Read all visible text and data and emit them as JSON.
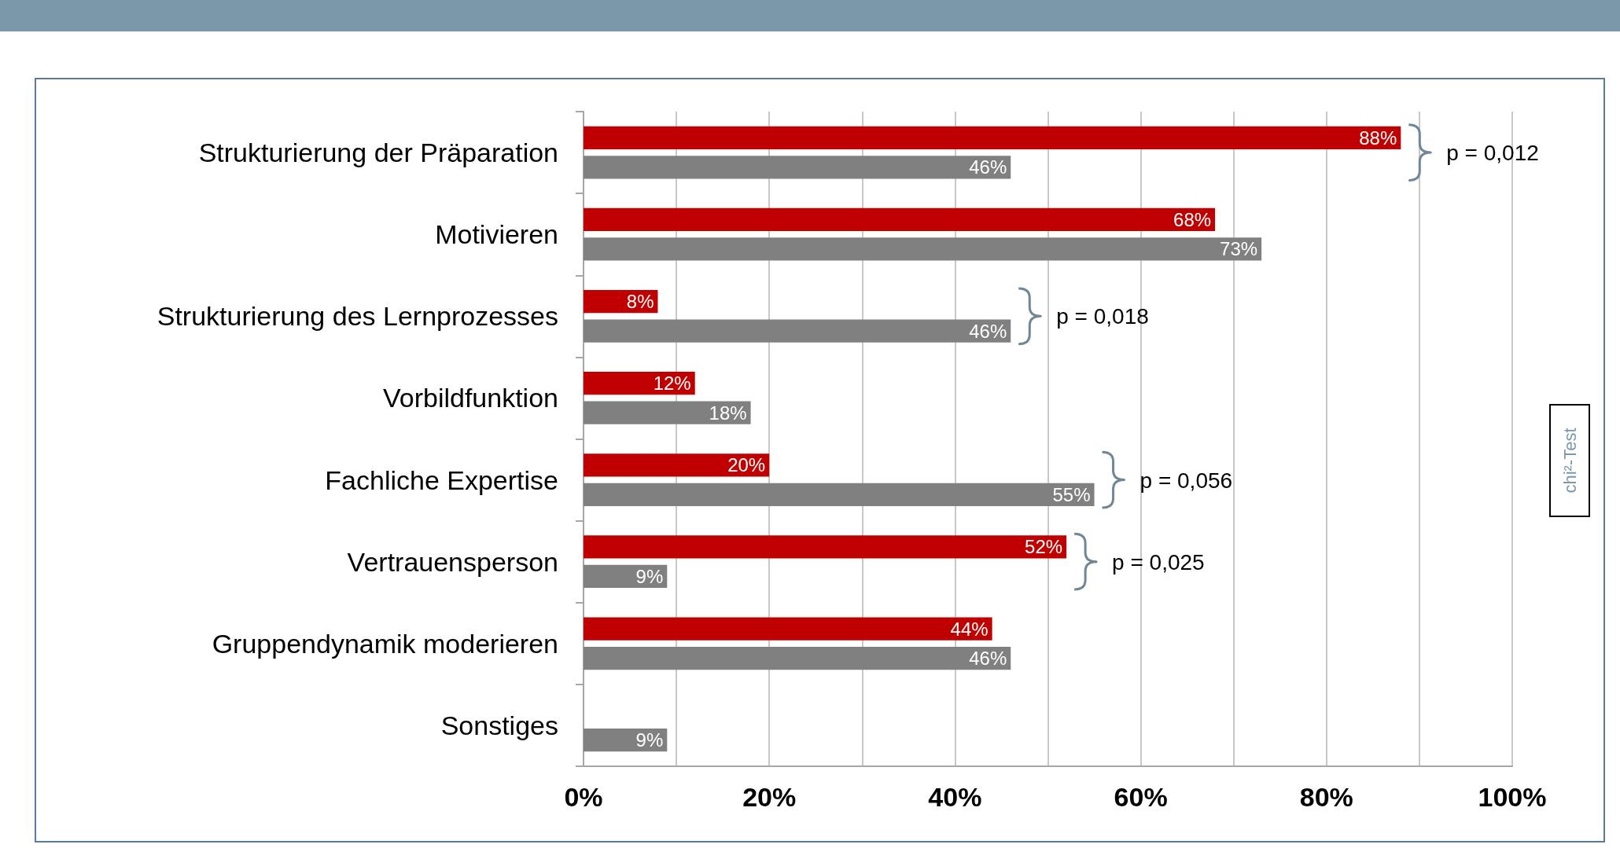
{
  "chart_data": {
    "type": "bar",
    "orientation": "horizontal",
    "categories": [
      "Strukturierung der Präparation",
      "Motivieren",
      "Strukturierung des Lernprozesses",
      "Vorbildfunktion",
      "Fachliche Expertise",
      "Vertrauensperson",
      "Gruppendynamik moderieren",
      "Sonstiges"
    ],
    "series": [
      {
        "color": "#c00000",
        "values": [
          88,
          68,
          8,
          12,
          20,
          52,
          44,
          null
        ],
        "value_labels": [
          "88%",
          "68%",
          "8%",
          "12%",
          "20%",
          "52%",
          "44%",
          null
        ]
      },
      {
        "color": "#808080",
        "values": [
          46,
          73,
          46,
          18,
          55,
          9,
          46,
          9
        ],
        "value_labels": [
          "46%",
          "73%",
          "46%",
          "18%",
          "55%",
          "9%",
          "46%",
          "9%"
        ]
      }
    ],
    "xlim": [
      0,
      100
    ],
    "xticks": [
      {
        "value": 0,
        "label": "0%"
      },
      {
        "value": 10,
        "label": null
      },
      {
        "value": 20,
        "label": "20%"
      },
      {
        "value": 30,
        "label": null
      },
      {
        "value": 40,
        "label": "40%"
      },
      {
        "value": 50,
        "label": null
      },
      {
        "value": 60,
        "label": "60%"
      },
      {
        "value": 70,
        "label": null
      },
      {
        "value": 80,
        "label": "80%"
      },
      {
        "value": 90,
        "label": null
      },
      {
        "value": 100,
        "label": "100%"
      }
    ],
    "grid": "x",
    "annotations": [
      "p = 0,012",
      "p = 0,018",
      "p = 0,056",
      "p = 0,025",
      "chi²-Test"
    ]
  }
}
